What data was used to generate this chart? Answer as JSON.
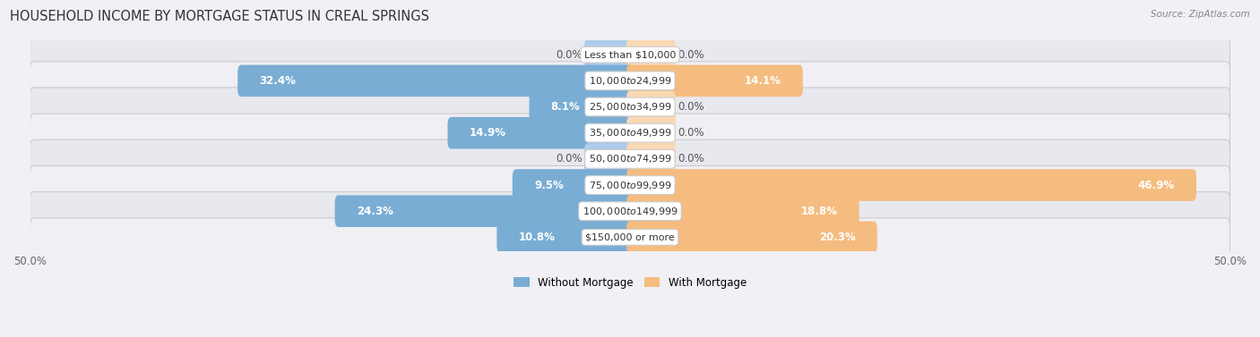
{
  "title": "HOUSEHOLD INCOME BY MORTGAGE STATUS IN CREAL SPRINGS",
  "source": "Source: ZipAtlas.com",
  "categories": [
    "Less than $10,000",
    "$10,000 to $24,999",
    "$25,000 to $34,999",
    "$35,000 to $49,999",
    "$50,000 to $74,999",
    "$75,000 to $99,999",
    "$100,000 to $149,999",
    "$150,000 or more"
  ],
  "without_mortgage": [
    0.0,
    32.4,
    8.1,
    14.9,
    0.0,
    9.5,
    24.3,
    10.8
  ],
  "with_mortgage": [
    0.0,
    14.1,
    0.0,
    0.0,
    0.0,
    46.9,
    18.8,
    20.3
  ],
  "without_mortgage_color": "#7aadd4",
  "with_mortgage_color": "#f5bc80",
  "without_mortgage_color_light": "#aecceb",
  "with_mortgage_color_light": "#f9d9b4",
  "background_color": "#f0f0f5",
  "row_color_odd": "#e8e8ef",
  "row_color_even": "#efeff4",
  "xlim": 50.0,
  "legend_labels": [
    "Without Mortgage",
    "With Mortgage"
  ],
  "title_fontsize": 10.5,
  "label_fontsize": 8.5,
  "tick_fontsize": 8.5,
  "cat_label_fontsize": 8.0,
  "stub_size": 5.0,
  "zero_stub_size": 3.5
}
